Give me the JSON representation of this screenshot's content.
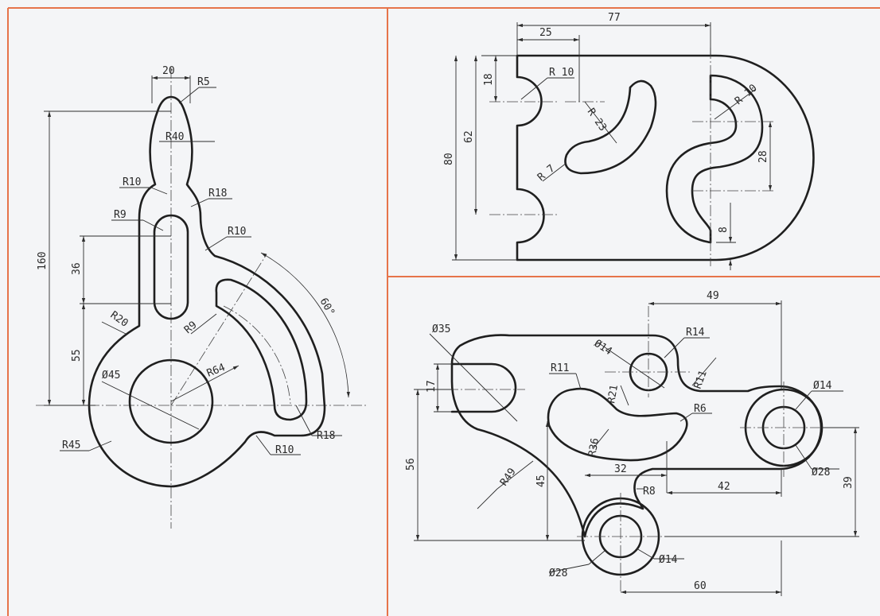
{
  "colors": {
    "frame": "#e6744a",
    "line": "#1f1f1f",
    "paper": "#f4f5f7"
  },
  "drawing_left": {
    "labels": {
      "width_top": "20",
      "r_tip": "R5",
      "r_neck": "R40",
      "r_waist": "R10",
      "r_shoulder": "R18",
      "r_slot": "R9",
      "r_step": "R10",
      "total_height": "160",
      "slot_len": "36",
      "r_fillet": "R20",
      "hub_height": "55",
      "hub_dia": "Ø45",
      "r_arc_slot": "R9",
      "r_sweep": "R64",
      "angle": "60°",
      "r_outer_end": "R18",
      "r_base": "R45",
      "r_notch": "R10"
    }
  },
  "drawing_top_right": {
    "labels": {
      "width": "77",
      "offset": "25",
      "r_side": "R 10",
      "top_off": "18",
      "r_slot": "R 23",
      "r_end": "R 7",
      "r_right": "R 10",
      "inner_h": "62",
      "total_h": "80",
      "s_height": "28",
      "bottom_off": "8"
    }
  },
  "drawing_bottom_right": {
    "labels": {
      "h_span": "49",
      "d_fork": "Ø35",
      "r_hub": "R14",
      "d_hub": "Ø14",
      "r_neck": "R11",
      "r_fillet": "R11",
      "r_inner": "R11",
      "r_slot": "R21",
      "r_small": "R6",
      "d_right": "Ø14",
      "fork_w": "17",
      "r_arc": "R36",
      "slot_len": "32",
      "d_right_out": "Ø28",
      "total_h": "56",
      "r_big": "R49",
      "mid_h": "45",
      "r_step": "R8",
      "right_off": "42",
      "right_h": "39",
      "d_boss_out": "Ø28",
      "d_boss_in": "Ø14",
      "base_len": "60"
    }
  }
}
